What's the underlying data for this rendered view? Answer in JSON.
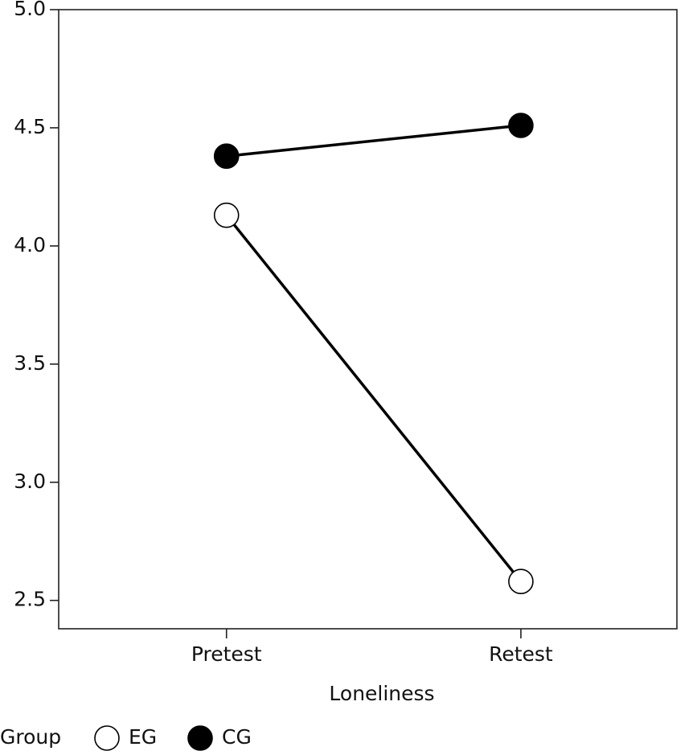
{
  "chart_data": {
    "type": "line",
    "x_label": "Loneliness",
    "categories": [
      "Pretest",
      "Retest"
    ],
    "series": [
      {
        "name": "EG",
        "color": "#ffffff",
        "values": [
          4.13,
          2.58
        ]
      },
      {
        "name": "CG",
        "color": "#000000",
        "values": [
          4.38,
          4.51
        ]
      }
    ],
    "line_color": "#000000",
    "legend_title": "Group",
    "legend_position": "bottom",
    "ylim": [
      2.38,
      5.0
    ],
    "yticks": [
      {
        "value": 2.5,
        "label": "2.5"
      },
      {
        "value": 3.0,
        "label": "3.0"
      },
      3.5,
      {
        "value": 4.0,
        "label": "4.0"
      },
      4.5,
      {
        "value": 5.0,
        "label": "5.0"
      }
    ],
    "grid": false
  }
}
